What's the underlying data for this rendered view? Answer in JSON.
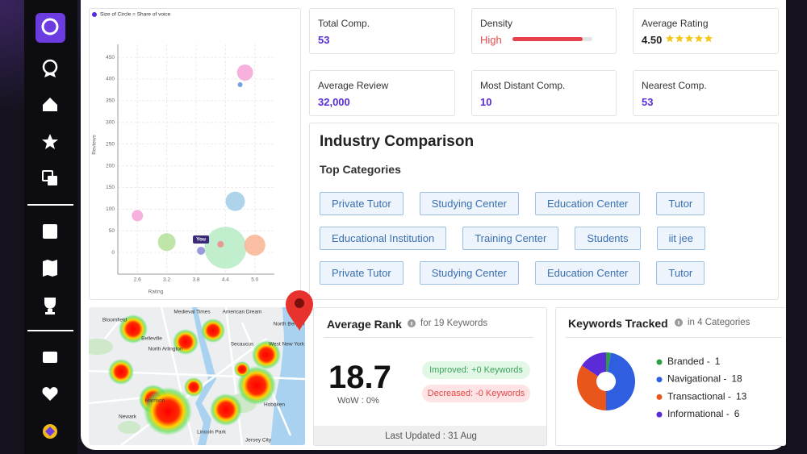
{
  "chart_data": [
    {
      "type": "bubble",
      "legend_note": "Size of Circle = Share of voice",
      "x_label": "Rating",
      "y_label": "Reviews",
      "x": [
        4.8,
        4.7,
        2.6,
        3.2,
        4.6,
        4.4,
        5.0,
        4.3,
        3.9
      ],
      "values": [
        415,
        387,
        85,
        24,
        118,
        11,
        17,
        19,
        4
      ],
      "sizes": [
        100,
        9,
        49,
        121,
        144,
        676,
        169,
        16,
        25
      ],
      "colors": [
        "#f5a3d6",
        "#5b8fd9",
        "#f5a3d6",
        "#b5e19a",
        "#9fcde6",
        "#b6ebc4",
        "#f9b493",
        "#f08a8a",
        "#8b87d6"
      ],
      "annotation": {
        "index": 8,
        "text": "You"
      },
      "xlim": [
        2.2,
        5.4
      ],
      "xticks": [
        2.6,
        3.2,
        3.8,
        4.4,
        {
          "value": 5,
          "label": "5.0"
        }
      ],
      "ylim": [
        -50,
        480
      ],
      "yticks": [
        0,
        50,
        100,
        150,
        200,
        250,
        300,
        350,
        400,
        450
      ],
      "grid": true
    },
    {
      "type": "pie",
      "title": "Keywords Tracked",
      "subtitle": "in 4 Categories",
      "categories": [
        "Branded -",
        "Navigational -",
        "Transactional -",
        "Informational -"
      ],
      "values": [
        1,
        18,
        13,
        6
      ],
      "colors": [
        "#2e9e44",
        "#2f5fe0",
        "#e8561b",
        "#5b2bd8"
      ]
    }
  ],
  "stats": [
    {
      "label": "Total Comp.",
      "value": 53
    },
    {
      "label": "Density",
      "value": "High",
      "bar_percent": 88
    },
    {
      "label": "Average Rating",
      "value": "4.50"
    },
    {
      "label": "Average Review",
      "value": "32,000"
    },
    {
      "label": "Most Distant Comp.",
      "value": 10
    },
    {
      "label": "Nearest Comp.",
      "value": 53
    }
  ],
  "industry": {
    "title": "Industry Comparison",
    "subtitle": "Top Categories",
    "tags": [
      "Private Tutor",
      "Studying Center",
      "Education Center",
      "Tutor",
      "Educational Institution",
      "Training Center",
      "Students",
      "iit jee",
      "Private Tutor",
      "Studying Center",
      "Education Center",
      "Tutor"
    ]
  },
  "average_rank": {
    "title": "Average Rank",
    "subtitle": "for 19 Keywords",
    "value": 18.7,
    "change": "WoW : 0%",
    "improved": "Improved: +0 Keywords",
    "decreased": "Decreased: -0 Keywords",
    "updated": "Last Updated : 31 Aug"
  },
  "map": {
    "labels": [
      "Bloomfield",
      "Belleville",
      "North Arlington",
      "Medieval Times",
      "American Dream",
      "Secaucus",
      "North Bergen",
      "West New York",
      "Harrison",
      "Newark",
      "Hoboken",
      "Lincoln Park",
      "Jersey City"
    ]
  }
}
